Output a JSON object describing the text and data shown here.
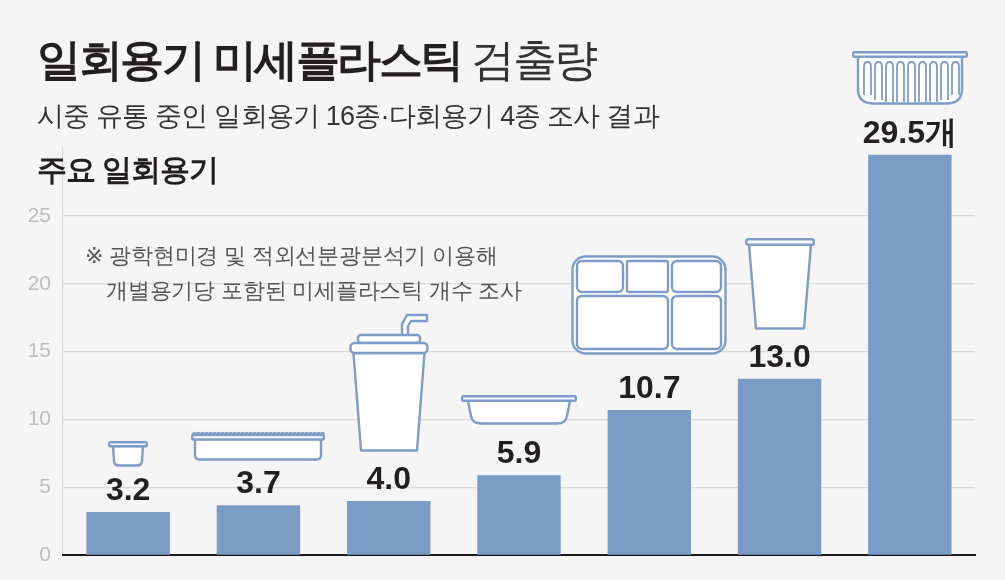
{
  "chart_data": {
    "type": "bar",
    "title": "일회용기 미세플라스틱 검출량",
    "subtitle": "시중 유통 중인 일회용기 16종·다회용기 4종 조사 결과",
    "annotations": [
      "주요 일회용기",
      "※ 광학현미경 및 적외선분광분석기 이용해\n개별용기당 포함된 미세플라스틱 개수 조사"
    ],
    "categories": [
      null,
      null,
      null,
      null,
      null,
      null,
      null
    ],
    "values": [
      3.2,
      3.7,
      4.0,
      5.9,
      10.7,
      13.0,
      29.5
    ],
    "value_labels": [
      "3.2",
      "3.7",
      "4.0",
      "5.9",
      "10.7",
      "13.0",
      "29.5개"
    ],
    "color": "#7b9bc7",
    "ylim": [
      0,
      30
    ],
    "yticks": [
      0,
      5,
      10,
      15,
      20,
      25
    ],
    "grid": "y"
  }
}
